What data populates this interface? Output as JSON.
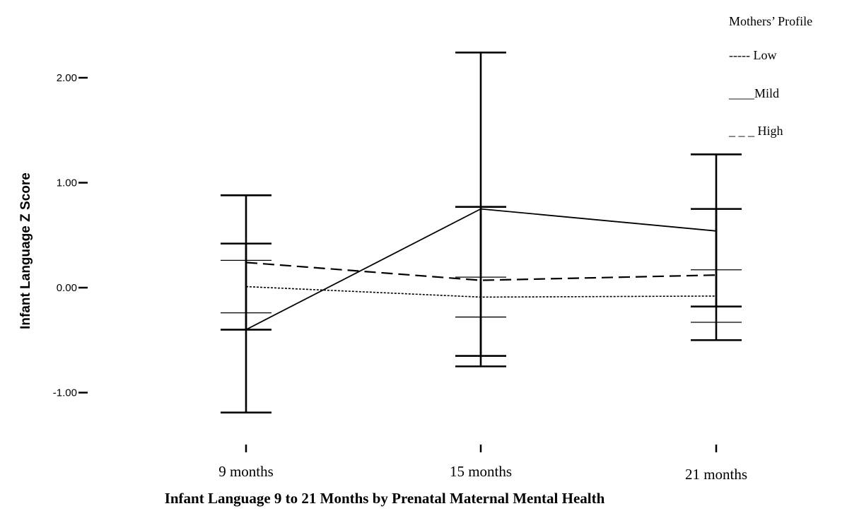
{
  "chart_data": {
    "type": "line",
    "title": "Infant Language 9 to 21 Months by Prenatal Maternal Mental Health",
    "ylabel": "Infant Language Z Score",
    "xlabel": "",
    "categories": [
      "9 months",
      "15 months",
      "21 months"
    ],
    "ylim": [
      -1.5,
      2.45
    ],
    "yticks": [
      -1.0,
      0.0,
      1.0,
      2.0
    ],
    "ytick_labels": [
      "-1.00",
      "0.00",
      "1.00",
      "2.00"
    ],
    "grid": false,
    "legend": {
      "title": "Mothers’ Profile",
      "placement": "top-right",
      "entries": [
        "----- Low",
        "____Mild",
        "_ _ _ High"
      ]
    },
    "series": [
      {
        "key": "low",
        "line_style": "dotted",
        "values": [
          0.01,
          -0.09,
          -0.08
        ],
        "ci_low": [
          -0.24,
          -0.28,
          -0.33
        ],
        "ci_high": [
          0.26,
          0.1,
          0.17
        ]
      },
      {
        "key": "mild",
        "line_style": "solid",
        "values": [
          -0.4,
          0.75,
          0.54
        ],
        "ci_low": [
          -1.19,
          -0.75,
          -0.5
        ],
        "ci_high": [
          0.88,
          2.24,
          1.27
        ]
      },
      {
        "key": "high",
        "line_style": "dashed",
        "values": [
          0.24,
          0.07,
          0.12
        ],
        "ci_low": [
          -0.4,
          -0.65,
          -0.18
        ],
        "ci_high": [
          0.42,
          0.77,
          0.75
        ]
      }
    ]
  }
}
